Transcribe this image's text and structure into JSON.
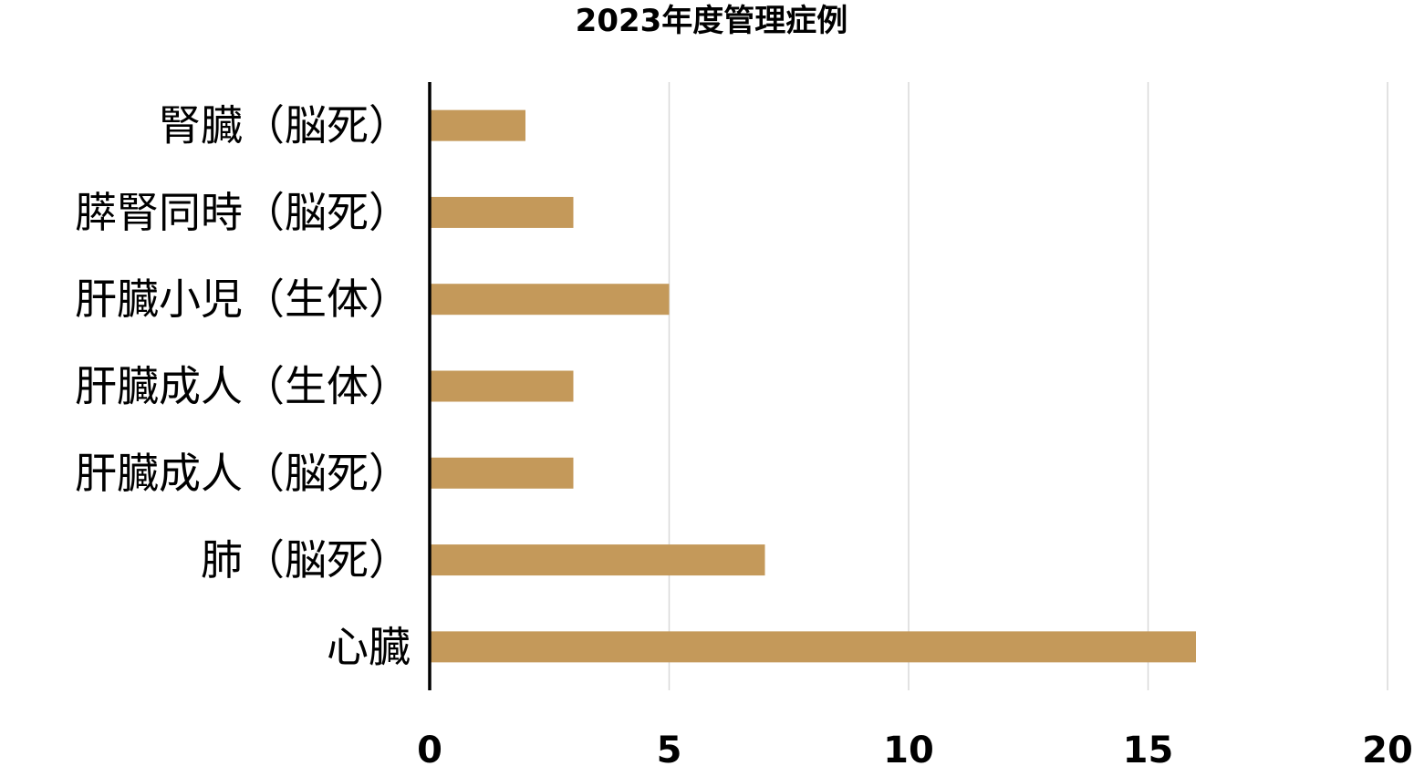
{
  "chart_data": {
    "type": "bar",
    "orientation": "horizontal",
    "title": "2023年度管理症例",
    "categories": [
      "腎臓（脳死）",
      "膵腎同時（脳死）",
      "肝臓小児（生体）",
      "肝臓成人（生体）",
      "肝臓成人（脳死）",
      "肺（脳死）",
      "心臓"
    ],
    "values": [
      2,
      3,
      5,
      3,
      3,
      7,
      16
    ],
    "xlim": [
      0,
      20
    ],
    "xticks": [
      0,
      5,
      10,
      15,
      20
    ],
    "grid": true,
    "bar_color": "#C4995A"
  }
}
